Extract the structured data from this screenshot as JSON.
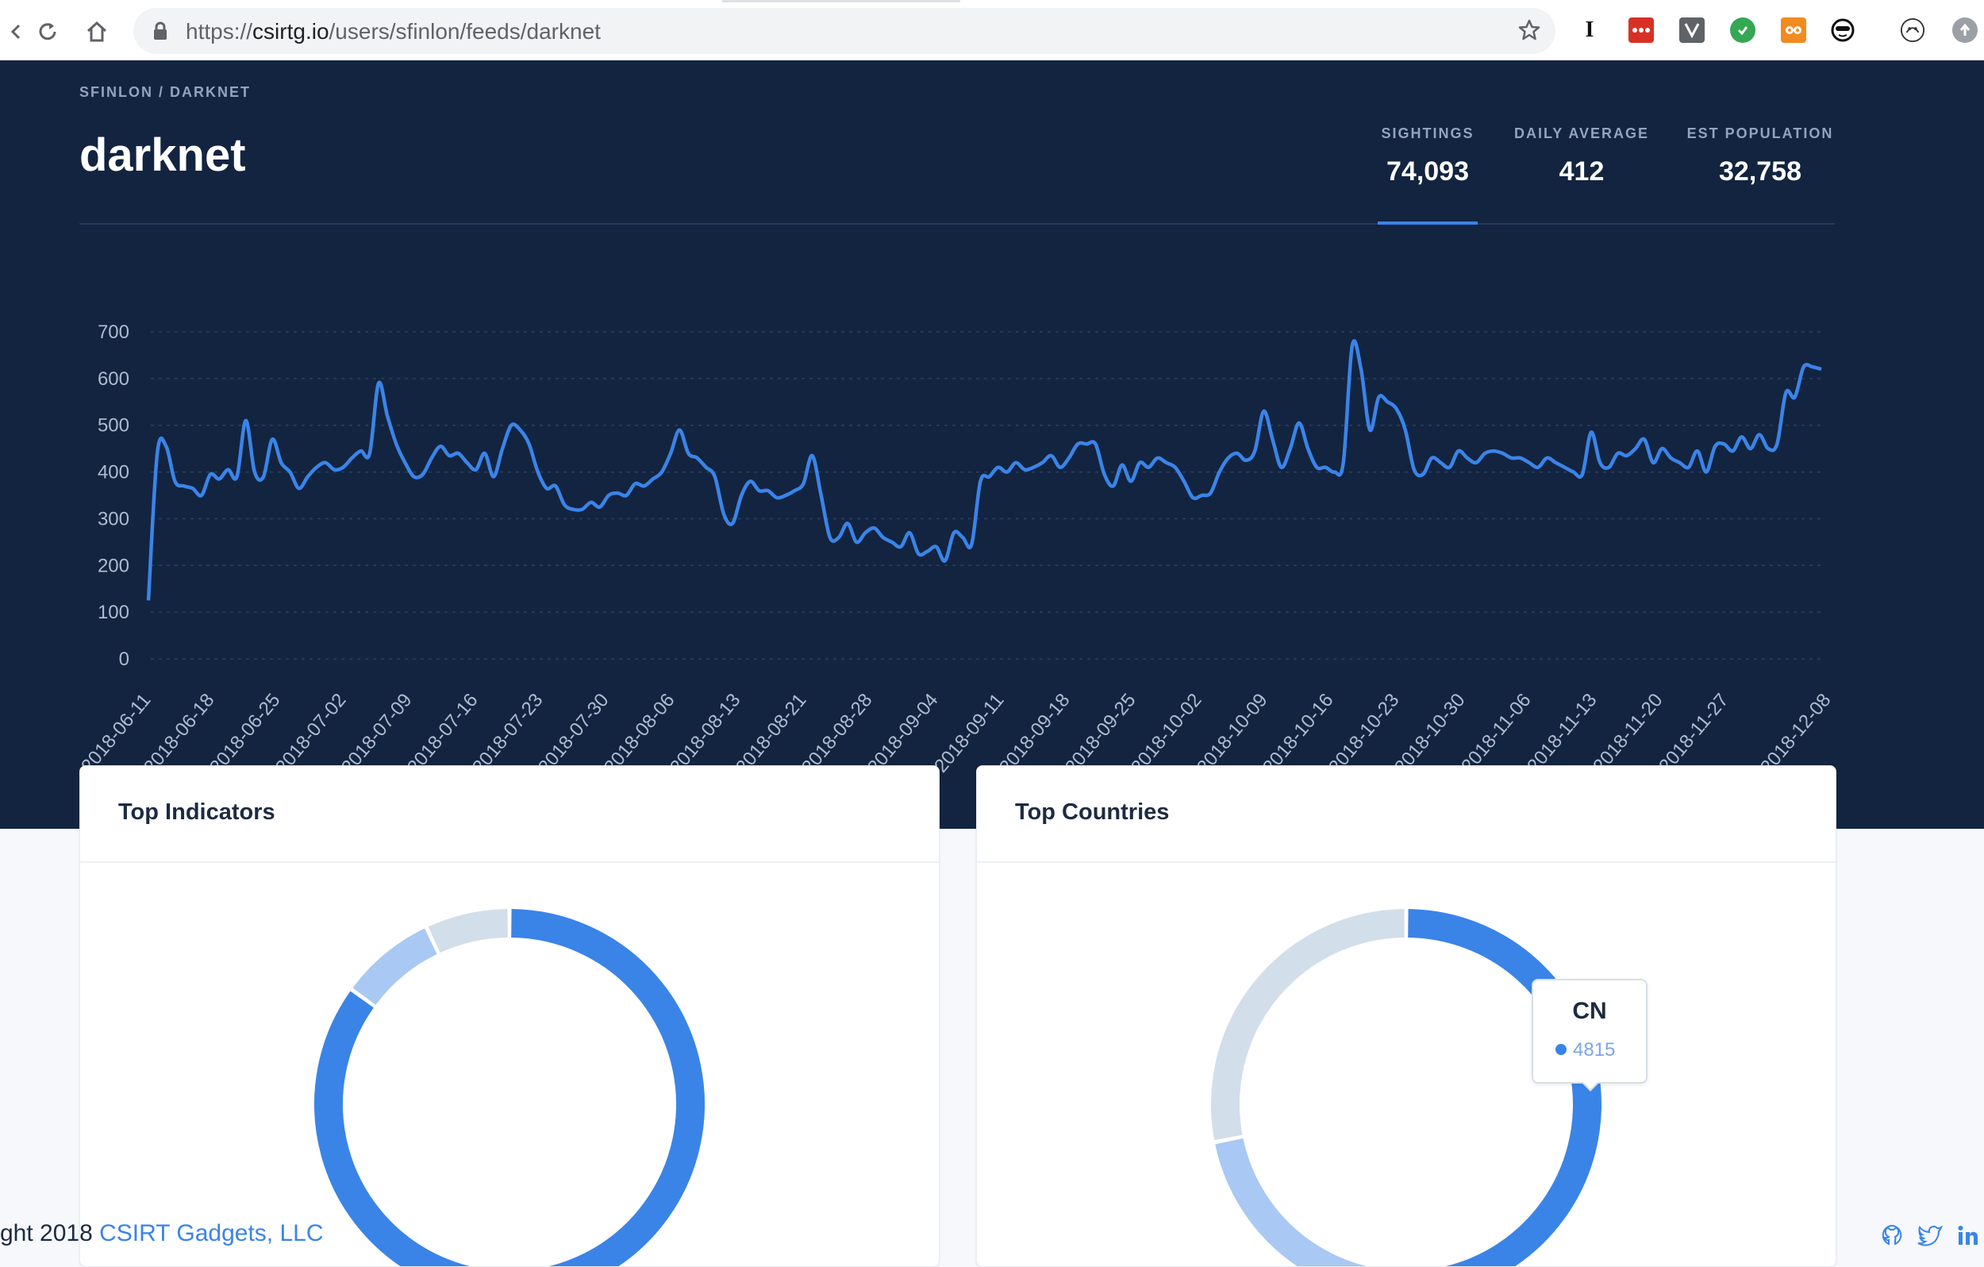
{
  "browser": {
    "url_scheme": "https://",
    "url_host": "csirtg.io",
    "url_path": "/users/sfinlon/feeds/darknet",
    "extensions": [
      "I"
    ]
  },
  "header": {
    "breadcrumb": "SFINLON / DARKNET",
    "title": "darknet",
    "stats": [
      {
        "label": "SIGHTINGS",
        "value": "74,093"
      },
      {
        "label": "DAILY AVERAGE",
        "value": "412"
      },
      {
        "label": "EST POPULATION",
        "value": "32,758"
      }
    ]
  },
  "chart_data": {
    "type": "line",
    "y_ticks": [
      "700",
      "600",
      "500",
      "400",
      "300",
      "200",
      "100",
      "0"
    ],
    "ylim": [
      0,
      700
    ],
    "grid": true,
    "x_ticks": [
      "2018-06-11",
      "2018-06-18",
      "2018-06-25",
      "2018-07-02",
      "2018-07-09",
      "2018-07-16",
      "2018-07-23",
      "2018-07-30",
      "2018-08-06",
      "2018-08-13",
      "2018-08-21",
      "2018-08-28",
      "2018-09-04",
      "2018-09-11",
      "2018-09-18",
      "2018-09-25",
      "2018-10-02",
      "2018-10-09",
      "2018-10-16",
      "2018-10-23",
      "2018-10-30",
      "2018-11-06",
      "2018-11-13",
      "2018-11-20",
      "2018-11-27",
      "2018-12-08"
    ],
    "color": "#3a84e8",
    "series": [
      {
        "values": [
          125,
          440,
          455,
          380,
          370,
          365,
          350,
          395,
          385,
          405,
          390,
          510,
          400,
          390,
          470,
          420,
          400,
          365,
          390,
          410,
          420,
          405,
          410,
          430,
          445,
          440,
          590,
          520,
          460,
          420,
          390,
          395,
          430,
          455,
          435,
          440,
          420,
          405,
          440,
          390,
          450,
          500,
          490,
          460,
          400,
          365,
          370,
          330,
          320,
          320,
          335,
          325,
          350,
          355,
          350,
          375,
          370,
          385,
          400,
          440,
          490,
          440,
          430,
          410,
          390,
          310,
          290,
          350,
          380,
          360,
          360,
          345,
          350,
          360,
          375,
          435,
          350,
          260,
          260,
          290,
          250,
          270,
          280,
          260,
          250,
          240,
          270,
          225,
          230,
          240,
          210,
          270,
          260,
          245,
          380,
          390,
          410,
          400,
          420,
          405,
          410,
          420,
          435,
          410,
          430,
          460,
          460,
          460,
          395,
          370,
          415,
          380,
          420,
          410,
          430,
          420,
          410,
          380,
          345,
          350,
          355,
          400,
          430,
          440,
          425,
          445,
          530,
          470,
          410,
          450,
          505,
          450,
          410,
          410,
          400,
          420,
          670,
          620,
          490,
          560,
          550,
          535,
          490,
          405,
          395,
          430,
          420,
          410,
          445,
          430,
          420,
          440,
          445,
          440,
          430,
          430,
          420,
          410,
          430,
          420,
          410,
          400,
          395,
          485,
          420,
          410,
          440,
          435,
          450,
          470,
          420,
          450,
          430,
          420,
          410,
          445,
          400,
          455,
          460,
          445,
          475,
          450,
          480,
          450,
          460,
          570,
          560,
          625,
          625,
          620
        ]
      }
    ]
  },
  "cards": [
    {
      "title": "Top Indicators",
      "chart_data": {
        "type": "pie",
        "slices": [
          {
            "value": 85,
            "color": "#3a84e8"
          },
          {
            "value": 8,
            "color": "#a9c8f3"
          },
          {
            "value": 7,
            "color": "#d3deeb"
          }
        ]
      }
    },
    {
      "title": "Top Countries",
      "chart_data": {
        "type": "pie",
        "slices": [
          {
            "label": "CN",
            "value": 4815,
            "color": "#3a84e8"
          },
          {
            "value": 2600,
            "color": "#a9c8f3"
          },
          {
            "value": 2900,
            "color": "#d3deeb"
          }
        ]
      },
      "tooltip": {
        "label": "CN",
        "value": "4815"
      }
    }
  ],
  "footer": {
    "prefix": "ght 2018 ",
    "company": "CSIRT Gadgets, LLC"
  }
}
